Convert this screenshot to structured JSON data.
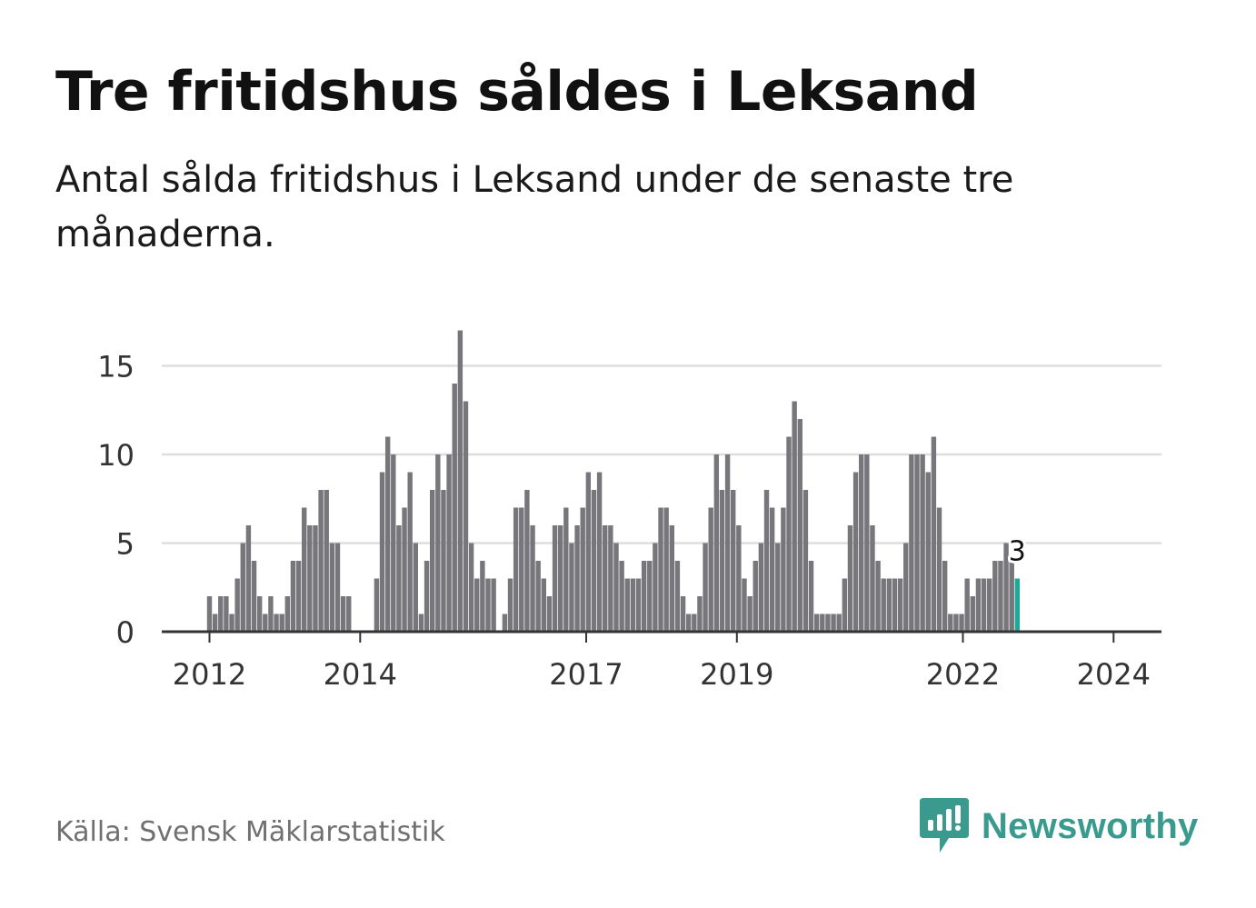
{
  "title": "Tre fritidshus såldes i Leksand",
  "subtitle": "Antal sålda fritidshus i Leksand under de senaste tre månaderna.",
  "source": "Källa: Svensk Mäklarstatistik",
  "brand": "Newsworthy",
  "colors": {
    "bar": "#76767b",
    "highlight": "#1fa79a",
    "grid": "#dddddd",
    "axis": "#333333",
    "brand": "#3a9a8e"
  },
  "chart_data": {
    "type": "bar",
    "title": "Tre fritidshus såldes i Leksand",
    "xlabel": "",
    "ylabel": "",
    "ylim": [
      0,
      17
    ],
    "yticks": [
      0,
      5,
      10,
      15
    ],
    "x_start_year": 2011.5,
    "x_end_year": 2024.0,
    "xticks": [
      2012,
      2014,
      2017,
      2019,
      2022,
      2024
    ],
    "grid": true,
    "values": [
      0,
      0,
      0,
      0,
      0,
      0,
      2,
      1,
      2,
      2,
      1,
      3,
      5,
      6,
      4,
      2,
      1,
      2,
      1,
      1,
      2,
      4,
      4,
      7,
      6,
      6,
      8,
      8,
      5,
      5,
      2,
      2,
      0,
      0,
      0,
      0,
      3,
      9,
      11,
      10,
      6,
      7,
      9,
      5,
      1,
      4,
      8,
      10,
      8,
      10,
      14,
      17,
      13,
      5,
      3,
      4,
      3,
      3,
      0,
      1,
      3,
      7,
      7,
      8,
      6,
      4,
      3,
      2,
      6,
      6,
      7,
      5,
      6,
      7,
      9,
      8,
      9,
      6,
      6,
      5,
      4,
      3,
      3,
      3,
      4,
      4,
      5,
      7,
      7,
      6,
      4,
      2,
      1,
      1,
      2,
      5,
      7,
      10,
      8,
      10,
      8,
      6,
      3,
      2,
      4,
      5,
      8,
      7,
      5,
      7,
      11,
      13,
      12,
      8,
      4,
      1,
      1,
      1,
      1,
      1,
      3,
      6,
      9,
      10,
      10,
      6,
      4,
      3,
      3,
      3,
      3,
      5,
      10,
      10,
      10,
      9,
      11,
      7,
      4,
      1,
      1,
      1,
      3,
      2,
      3,
      3,
      3,
      4,
      4,
      5,
      4,
      3
    ],
    "highlight_last": true,
    "last_value_label": "3"
  }
}
